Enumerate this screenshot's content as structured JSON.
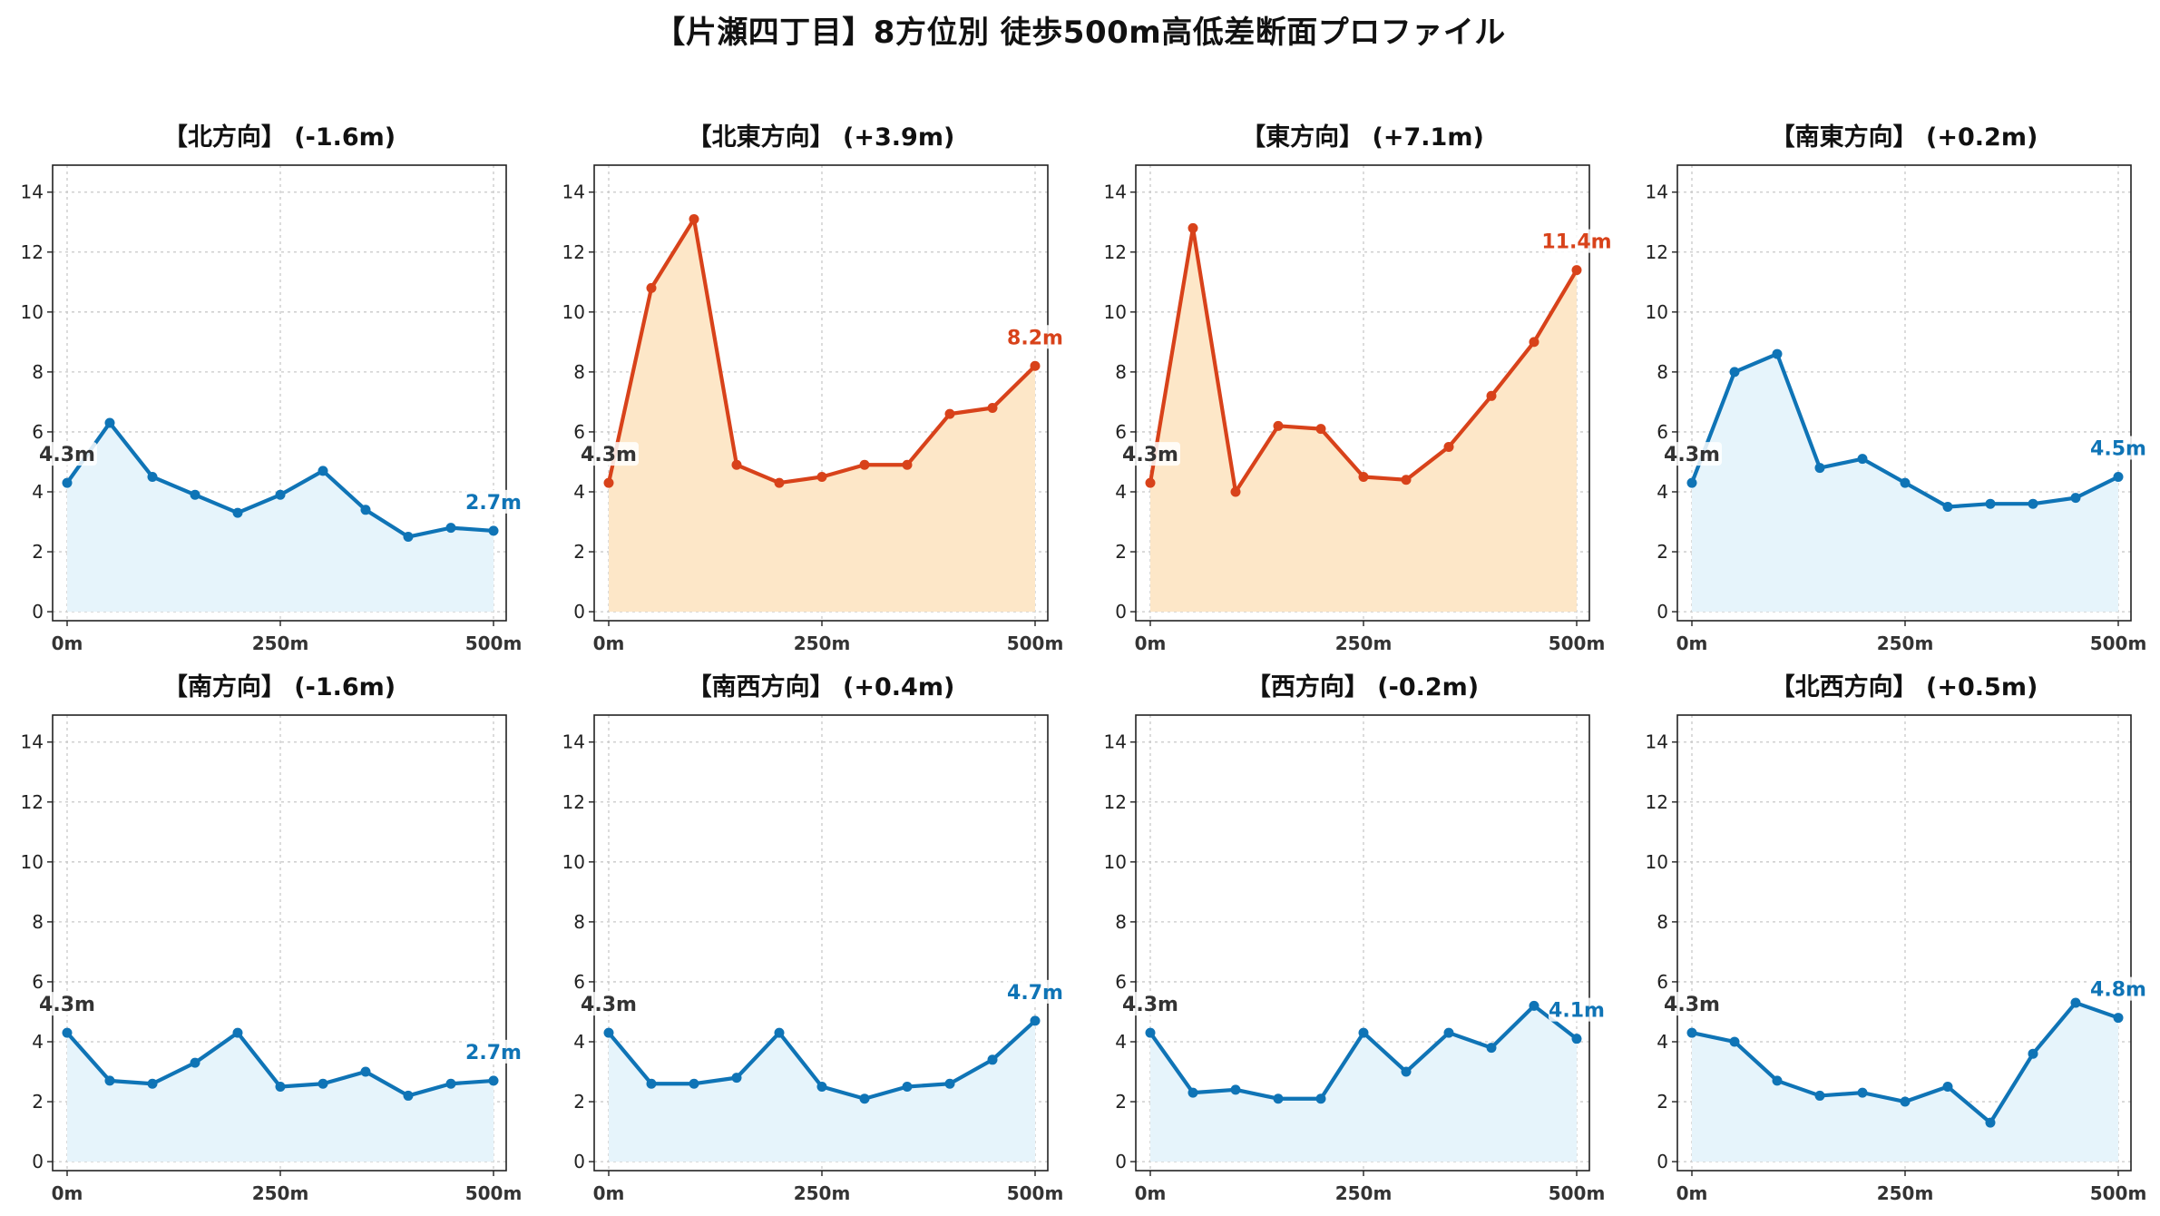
{
  "title": "【片瀬四丁目】8方位別 徒歩500m高低差断面プロファイル",
  "colors": {
    "blue_line": "#0f74b6",
    "blue_fill": "#e6f4fb",
    "red_line": "#d8421a",
    "orange_fill": "#fde7c8",
    "grid": "#c8c8c8"
  },
  "chart_data": [
    {
      "type": "line",
      "title": "【北方向】 (-1.6m)",
      "theme": "blue",
      "x": [
        0,
        50,
        100,
        150,
        200,
        250,
        300,
        350,
        400,
        450,
        500
      ],
      "values": [
        4.3,
        6.3,
        4.5,
        3.9,
        3.3,
        3.9,
        4.7,
        3.4,
        2.5,
        2.8,
        2.7
      ],
      "start_label": "4.3m",
      "end_label": "2.7m",
      "xticks": [
        0,
        250,
        500
      ],
      "xtick_labels": [
        "0m",
        "250m",
        "500m"
      ],
      "yticks": [
        0,
        2,
        4,
        6,
        8,
        10,
        12,
        14
      ],
      "ylim": [
        -0.3,
        14.9
      ],
      "grid": true
    },
    {
      "type": "line",
      "title": "【北東方向】 (+3.9m)",
      "theme": "red",
      "x": [
        0,
        50,
        100,
        150,
        200,
        250,
        300,
        350,
        400,
        450,
        500
      ],
      "values": [
        4.3,
        10.8,
        13.1,
        4.9,
        4.3,
        4.5,
        4.9,
        4.9,
        6.6,
        6.8,
        8.2
      ],
      "start_label": "4.3m",
      "end_label": "8.2m",
      "xticks": [
        0,
        250,
        500
      ],
      "xtick_labels": [
        "0m",
        "250m",
        "500m"
      ],
      "yticks": [
        0,
        2,
        4,
        6,
        8,
        10,
        12,
        14
      ],
      "ylim": [
        -0.3,
        14.9
      ],
      "grid": true
    },
    {
      "type": "line",
      "title": "【東方向】 (+7.1m)",
      "theme": "red",
      "x": [
        0,
        50,
        100,
        150,
        200,
        250,
        300,
        350,
        400,
        450,
        500
      ],
      "values": [
        4.3,
        12.8,
        4.0,
        6.2,
        6.1,
        4.5,
        4.4,
        5.5,
        7.2,
        9.0,
        11.4
      ],
      "start_label": "4.3m",
      "end_label": "11.4m",
      "xticks": [
        0,
        250,
        500
      ],
      "xtick_labels": [
        "0m",
        "250m",
        "500m"
      ],
      "yticks": [
        0,
        2,
        4,
        6,
        8,
        10,
        12,
        14
      ],
      "ylim": [
        -0.3,
        14.9
      ],
      "grid": true
    },
    {
      "type": "line",
      "title": "【南東方向】 (+0.2m)",
      "theme": "blue",
      "x": [
        0,
        50,
        100,
        150,
        200,
        250,
        300,
        350,
        400,
        450,
        500
      ],
      "values": [
        4.3,
        8.0,
        8.6,
        4.8,
        5.1,
        4.3,
        3.5,
        3.6,
        3.6,
        3.8,
        4.5
      ],
      "start_label": "4.3m",
      "end_label": "4.5m",
      "xticks": [
        0,
        250,
        500
      ],
      "xtick_labels": [
        "0m",
        "250m",
        "500m"
      ],
      "yticks": [
        0,
        2,
        4,
        6,
        8,
        10,
        12,
        14
      ],
      "ylim": [
        -0.3,
        14.9
      ],
      "grid": true
    },
    {
      "type": "line",
      "title": "【南方向】 (-1.6m)",
      "theme": "blue",
      "x": [
        0,
        50,
        100,
        150,
        200,
        250,
        300,
        350,
        400,
        450,
        500
      ],
      "values": [
        4.3,
        2.7,
        2.6,
        3.3,
        4.3,
        2.5,
        2.6,
        3.0,
        2.2,
        2.6,
        2.7
      ],
      "start_label": "4.3m",
      "end_label": "2.7m",
      "xticks": [
        0,
        250,
        500
      ],
      "xtick_labels": [
        "0m",
        "250m",
        "500m"
      ],
      "yticks": [
        0,
        2,
        4,
        6,
        8,
        10,
        12,
        14
      ],
      "ylim": [
        -0.3,
        14.9
      ],
      "grid": true
    },
    {
      "type": "line",
      "title": "【南西方向】 (+0.4m)",
      "theme": "blue",
      "x": [
        0,
        50,
        100,
        150,
        200,
        250,
        300,
        350,
        400,
        450,
        500
      ],
      "values": [
        4.3,
        2.6,
        2.6,
        2.8,
        4.3,
        2.5,
        2.1,
        2.5,
        2.6,
        3.4,
        4.7
      ],
      "start_label": "4.3m",
      "end_label": "4.7m",
      "xticks": [
        0,
        250,
        500
      ],
      "xtick_labels": [
        "0m",
        "250m",
        "500m"
      ],
      "yticks": [
        0,
        2,
        4,
        6,
        8,
        10,
        12,
        14
      ],
      "ylim": [
        -0.3,
        14.9
      ],
      "grid": true
    },
    {
      "type": "line",
      "title": "【西方向】 (-0.2m)",
      "theme": "blue",
      "x": [
        0,
        50,
        100,
        150,
        200,
        250,
        300,
        350,
        400,
        450,
        500
      ],
      "values": [
        4.3,
        2.3,
        2.4,
        2.1,
        2.1,
        4.3,
        3.0,
        4.3,
        3.8,
        5.2,
        4.1
      ],
      "start_label": "4.3m",
      "end_label": "4.1m",
      "xticks": [
        0,
        250,
        500
      ],
      "xtick_labels": [
        "0m",
        "250m",
        "500m"
      ],
      "yticks": [
        0,
        2,
        4,
        6,
        8,
        10,
        12,
        14
      ],
      "ylim": [
        -0.3,
        14.9
      ],
      "grid": true
    },
    {
      "type": "line",
      "title": "【北西方向】 (+0.5m)",
      "theme": "blue",
      "x": [
        0,
        50,
        100,
        150,
        200,
        250,
        300,
        350,
        400,
        450,
        500
      ],
      "values": [
        4.3,
        4.0,
        2.7,
        2.2,
        2.3,
        2.0,
        2.5,
        1.3,
        3.6,
        5.3,
        4.8
      ],
      "start_label": "4.3m",
      "end_label": "4.8m",
      "xticks": [
        0,
        250,
        500
      ],
      "xtick_labels": [
        "0m",
        "250m",
        "500m"
      ],
      "yticks": [
        0,
        2,
        4,
        6,
        8,
        10,
        12,
        14
      ],
      "ylim": [
        -0.3,
        14.9
      ],
      "grid": true
    }
  ]
}
